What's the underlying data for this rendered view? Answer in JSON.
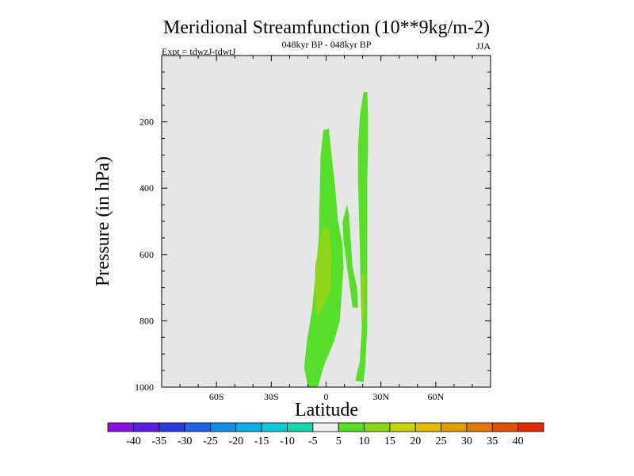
{
  "chart_data": {
    "type": "contour",
    "title": "Meridional Streamfunction (10**9kg/m-2)",
    "subtitle_center": "048kyr BP - 048kyr BP",
    "subtitle_left": "Expt = tdwzJ-tdwtJ",
    "subtitle_right": "JJA",
    "xlabel": "Latitude",
    "ylabel": "Pressure (in hPa)",
    "xlim": [
      -90,
      90
    ],
    "ylim": [
      1000,
      0
    ],
    "x_ticks": [
      {
        "value": -60,
        "label": "60S"
      },
      {
        "value": -30,
        "label": "30S"
      },
      {
        "value": 0,
        "label": "0"
      },
      {
        "value": 30,
        "label": "30N"
      },
      {
        "value": 60,
        "label": "60N"
      }
    ],
    "y_ticks": [
      {
        "value": 200,
        "label": "200"
      },
      {
        "value": 400,
        "label": "400"
      },
      {
        "value": 600,
        "label": "600"
      },
      {
        "value": 800,
        "label": "800"
      },
      {
        "value": 1000,
        "label": "1000"
      }
    ],
    "background_color": "#e6e6e6",
    "colorbar": {
      "labels": [
        "-40",
        "-35",
        "-30",
        "-25",
        "-20",
        "-15",
        "-10",
        "-5",
        "5",
        "10",
        "15",
        "20",
        "25",
        "30",
        "35",
        "40"
      ],
      "colors": [
        "#8a12e6",
        "#5a1fe0",
        "#2a3ddc",
        "#1f62e6",
        "#138ee6",
        "#0bb0e6",
        "#10c8d8",
        "#18d6b0",
        "#efefef",
        "#56de2a",
        "#8ed417",
        "#c6d40b",
        "#e2bc00",
        "#e0a000",
        "#e07a00",
        "#e25000",
        "#e22a06"
      ]
    },
    "contours": [
      {
        "name": "left-cell-outer",
        "level": "5 to 10",
        "color": "#56de2a",
        "points": [
          [
            -10,
            1000
          ],
          [
            -12,
            940
          ],
          [
            -10.5,
            860
          ],
          [
            -7.5,
            760
          ],
          [
            -4,
            550
          ],
          [
            -3.5,
            420
          ],
          [
            -3,
            300
          ],
          [
            -1.5,
            225
          ],
          [
            1.5,
            220
          ],
          [
            3,
            300
          ],
          [
            5,
            400
          ],
          [
            6.5,
            500
          ],
          [
            9,
            570
          ],
          [
            9.5,
            640
          ],
          [
            8.5,
            720
          ],
          [
            7.5,
            800
          ],
          [
            4.5,
            860
          ],
          [
            -1.5,
            940
          ],
          [
            -6,
            1030
          ]
        ]
      },
      {
        "name": "left-cell-core",
        "level": "10 to 15",
        "color": "#8ed417",
        "points": [
          [
            -5,
            790
          ],
          [
            -6,
            720
          ],
          [
            -6,
            640
          ],
          [
            -3.5,
            560
          ],
          [
            -1.5,
            520
          ],
          [
            1.5,
            520
          ],
          [
            3,
            600
          ],
          [
            2.5,
            700
          ],
          [
            -1.5,
            760
          ]
        ]
      },
      {
        "name": "right-cell-outer",
        "level": "5 to 10",
        "color": "#56de2a",
        "points": [
          [
            16,
            980
          ],
          [
            18.5,
            920
          ],
          [
            19.5,
            820
          ],
          [
            19,
            720
          ],
          [
            18.5,
            600
          ],
          [
            18,
            480
          ],
          [
            17.5,
            380
          ],
          [
            17.5,
            280
          ],
          [
            18.5,
            180
          ],
          [
            20.5,
            110
          ],
          [
            22.5,
            110
          ],
          [
            23,
            180
          ],
          [
            23,
            280
          ],
          [
            22.5,
            380
          ],
          [
            22.5,
            480
          ],
          [
            22.5,
            600
          ],
          [
            22.5,
            720
          ],
          [
            22.5,
            820
          ],
          [
            21.5,
            930
          ],
          [
            20.5,
            985
          ]
        ]
      },
      {
        "name": "right-cell-core",
        "level": "10 to 15",
        "color": "#8ed417",
        "points": [
          [
            19.5,
            660
          ],
          [
            21.5,
            660
          ],
          [
            21.5,
            720
          ],
          [
            21,
            790
          ],
          [
            19.5,
            800
          ],
          [
            19,
            730
          ]
        ]
      },
      {
        "name": "bridge-cell",
        "level": "5 to 10",
        "color": "#56de2a",
        "points": [
          [
            9,
            500
          ],
          [
            11.5,
            450
          ],
          [
            12.5,
            480
          ],
          [
            13.5,
            560
          ],
          [
            14.5,
            640
          ],
          [
            17,
            700
          ],
          [
            17.5,
            760
          ],
          [
            14.5,
            760
          ],
          [
            12,
            660
          ],
          [
            10.5,
            600
          ],
          [
            9.5,
            560
          ]
        ]
      }
    ]
  }
}
